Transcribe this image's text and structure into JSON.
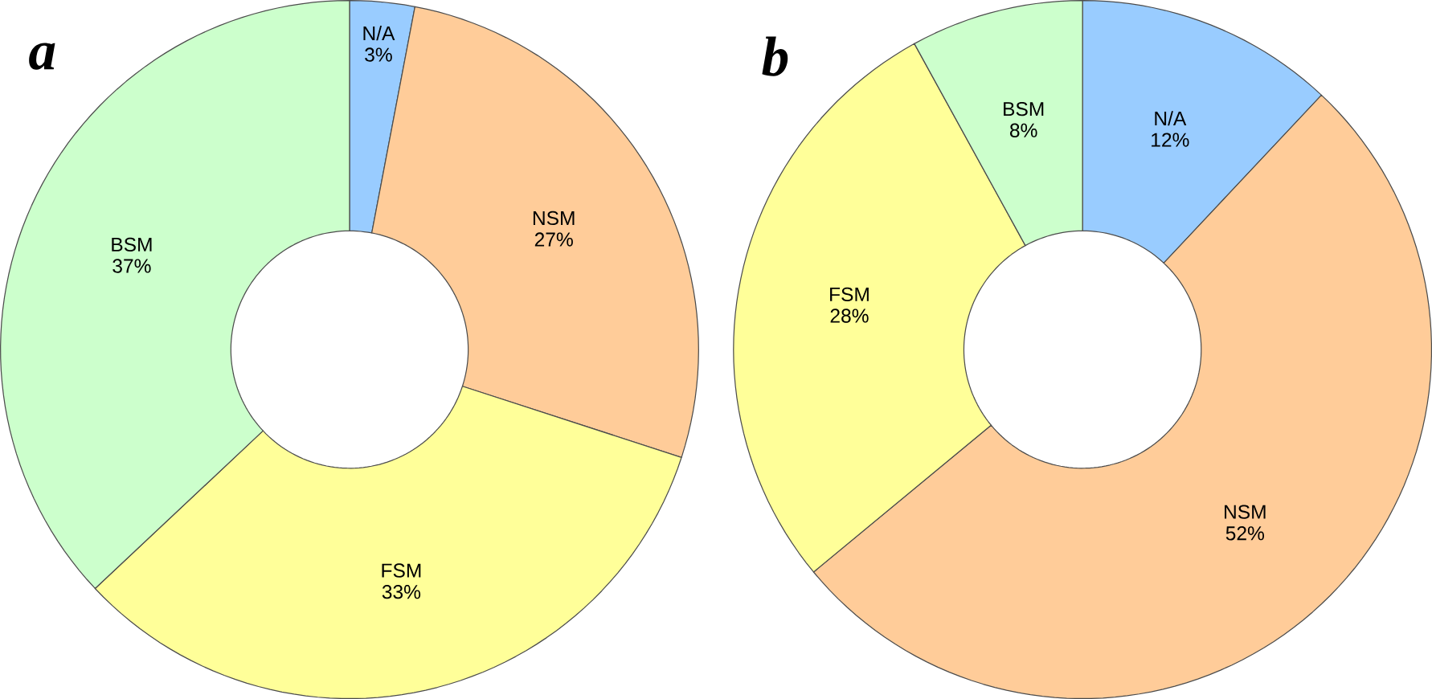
{
  "chart_data": [
    {
      "type": "donut",
      "title": "a",
      "categories": [
        "N/A",
        "NSM",
        "FSM",
        "BSM"
      ],
      "values": [
        3,
        27,
        33,
        37
      ],
      "colors": [
        "#99ccff",
        "#ffcc99",
        "#ffff99",
        "#ccffcc"
      ],
      "value_labels": [
        "3%",
        "27%",
        "33%",
        "37%"
      ]
    },
    {
      "type": "donut",
      "title": "b",
      "categories": [
        "N/A",
        "NSM",
        "FSM",
        "BSM"
      ],
      "values": [
        12,
        52,
        28,
        8
      ],
      "colors": [
        "#99ccff",
        "#ffcc99",
        "#ffff99",
        "#ccffcc"
      ],
      "value_labels": [
        "12%",
        "52%",
        "28%",
        "8%"
      ]
    }
  ]
}
